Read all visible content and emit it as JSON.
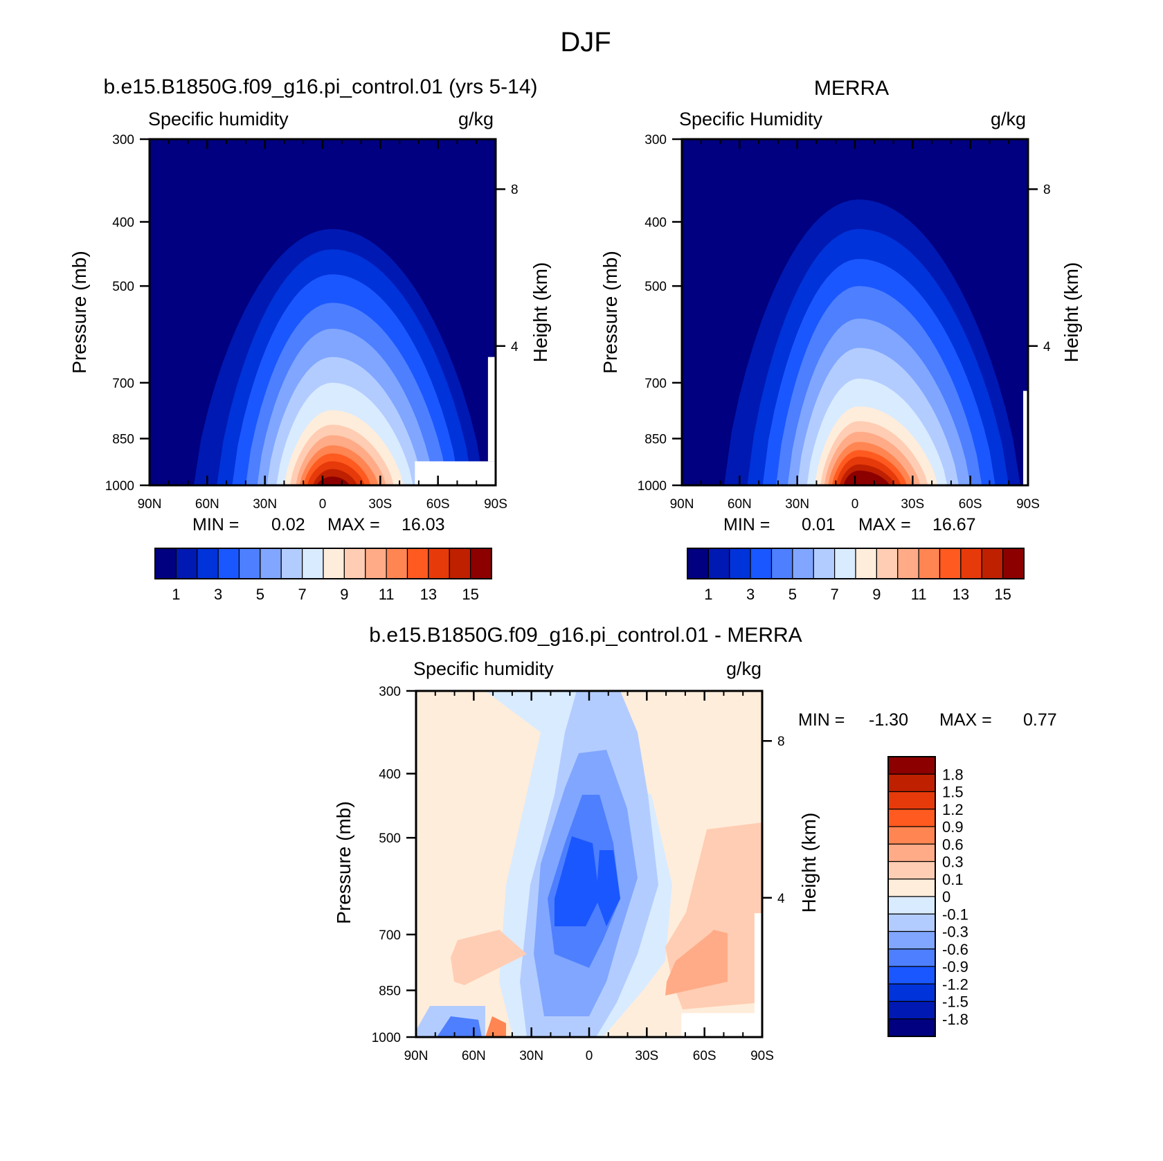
{
  "figure": {
    "title": "DJF"
  },
  "colors": {
    "seq": [
      "#000080",
      "#0019b3",
      "#0033d9",
      "#1a57ff",
      "#4d7fff",
      "#80a6ff",
      "#b3ccff",
      "#d9ebff",
      "#ffeddb",
      "#ffcdb3",
      "#ffab87",
      "#ff8552",
      "#ff5a1f",
      "#e63a0a",
      "#bf2000",
      "#8c0000"
    ],
    "diff": [
      "#000080",
      "#0019b3",
      "#0033d9",
      "#1a57ff",
      "#4d7fff",
      "#80a6ff",
      "#b3ccff",
      "#d9ebff",
      "#ffeddb",
      "#ffcdb3",
      "#ffab87",
      "#ff8552",
      "#ff5a1f",
      "#e63a0a",
      "#bf2000",
      "#8c0000"
    ]
  },
  "chart_data": [
    {
      "type": "heatmap",
      "title": "b.e15.B1850G.f09_g16.pi_control.01 (yrs 5-14)",
      "subtitle": "Specific humidity",
      "units": "g/kg",
      "xlabel": "",
      "ylabel": "Pressure (mb)",
      "ylabel_right": "Height (km)",
      "x_ticks": [
        "90N",
        "60N",
        "30N",
        "0",
        "30S",
        "60S",
        "90S"
      ],
      "y_ticks": [
        "300",
        "400",
        "500",
        "700",
        "850",
        "1000"
      ],
      "right_ticks": [
        "8",
        "4"
      ],
      "ylim": [
        1000,
        300
      ],
      "min_label": "MIN =",
      "min_value": "0.02",
      "max_label": "MAX =",
      "max_value": "16.03",
      "colorbar_labels": [
        "1",
        "3",
        "5",
        "7",
        "9",
        "11",
        "13",
        "15"
      ],
      "peak": 16.03,
      "peak_lat": -5,
      "levels": [
        {
          "value": 1,
          "top": 410,
          "lat_n": 67,
          "lat_s": -84,
          "crest": 410
        },
        {
          "value": 2,
          "top": 440,
          "lat_n": 55,
          "lat_s": -78
        },
        {
          "value": 3,
          "top": 480,
          "lat_n": 47,
          "lat_s": -71
        },
        {
          "value": 4,
          "top": 530,
          "lat_n": 40,
          "lat_s": -65
        },
        {
          "value": 5,
          "top": 580,
          "lat_n": 34,
          "lat_s": -58
        },
        {
          "value": 6,
          "top": 640,
          "lat_n": 29,
          "lat_s": -52
        },
        {
          "value": 7,
          "top": 700,
          "lat_n": 24,
          "lat_s": -47
        },
        {
          "value": 8,
          "top": 770,
          "lat_n": 20,
          "lat_s": -42
        },
        {
          "value": 9,
          "top": 810,
          "lat_n": 17,
          "lat_s": -37
        },
        {
          "value": 10,
          "top": 840,
          "lat_n": 14,
          "lat_s": -33
        },
        {
          "value": 11,
          "top": 870,
          "lat_n": 12,
          "lat_s": -29
        },
        {
          "value": 12,
          "top": 895,
          "lat_n": 10,
          "lat_s": -25
        },
        {
          "value": 13,
          "top": 920,
          "lat_n": 8,
          "lat_s": -22
        },
        {
          "value": 14,
          "top": 945,
          "lat_n": 5,
          "lat_s": -18
        },
        {
          "value": 15,
          "top": 970,
          "lat_n": 3,
          "lat_s": -14
        }
      ]
    },
    {
      "type": "heatmap",
      "title": "MERRA",
      "subtitle": "Specific Humidity",
      "units": "g/kg",
      "xlabel": "",
      "ylabel": "Pressure (mb)",
      "ylabel_right": "Height (km)",
      "x_ticks": [
        "90N",
        "60N",
        "30N",
        "0",
        "30S",
        "60S",
        "90S"
      ],
      "y_ticks": [
        "300",
        "400",
        "500",
        "700",
        "850",
        "1000"
      ],
      "right_ticks": [
        "8",
        "4"
      ],
      "ylim": [
        1000,
        300
      ],
      "min_label": "MIN =",
      "min_value": "0.01",
      "max_label": "MAX =",
      "max_value": "16.67",
      "colorbar_labels": [
        "1",
        "3",
        "5",
        "7",
        "9",
        "11",
        "13",
        "15"
      ],
      "peak": 16.67,
      "peak_lat": -2,
      "levels": [
        {
          "value": 1,
          "top": 370,
          "lat_n": 68,
          "lat_s": -86
        },
        {
          "value": 2,
          "top": 410,
          "lat_n": 56,
          "lat_s": -80
        },
        {
          "value": 3,
          "top": 455,
          "lat_n": 48,
          "lat_s": -73
        },
        {
          "value": 4,
          "top": 500,
          "lat_n": 41,
          "lat_s": -66
        },
        {
          "value": 5,
          "top": 560,
          "lat_n": 35,
          "lat_s": -60
        },
        {
          "value": 6,
          "top": 620,
          "lat_n": 30,
          "lat_s": -54
        },
        {
          "value": 7,
          "top": 690,
          "lat_n": 25,
          "lat_s": -48
        },
        {
          "value": 8,
          "top": 760,
          "lat_n": 21,
          "lat_s": -43
        },
        {
          "value": 9,
          "top": 800,
          "lat_n": 18,
          "lat_s": -38
        },
        {
          "value": 10,
          "top": 830,
          "lat_n": 16,
          "lat_s": -34
        },
        {
          "value": 11,
          "top": 860,
          "lat_n": 14,
          "lat_s": -30
        },
        {
          "value": 12,
          "top": 885,
          "lat_n": 12,
          "lat_s": -27
        },
        {
          "value": 13,
          "top": 905,
          "lat_n": 10,
          "lat_s": -24
        },
        {
          "value": 14,
          "top": 930,
          "lat_n": 8,
          "lat_s": -21
        },
        {
          "value": 15,
          "top": 950,
          "lat_n": 6,
          "lat_s": -18
        }
      ]
    },
    {
      "type": "heatmap",
      "title": "b.e15.B1850G.f09_g16.pi_control.01 - MERRA",
      "subtitle": "Specific humidity",
      "units": "g/kg",
      "xlabel": "",
      "ylabel": "Pressure (mb)",
      "ylabel_right": "Height (km)",
      "x_ticks": [
        "90N",
        "60N",
        "30N",
        "0",
        "30S",
        "60S",
        "90S"
      ],
      "y_ticks": [
        "300",
        "400",
        "500",
        "700",
        "850",
        "1000"
      ],
      "right_ticks": [
        "8",
        "4"
      ],
      "ylim": [
        1000,
        300
      ],
      "min_label": "MIN =",
      "min_value": "-1.30",
      "max_label": "MAX =",
      "max_value": "0.77",
      "colorbar_labels": [
        "1.8",
        "1.5",
        "1.2",
        "0.9",
        "0.6",
        "0.3",
        "0.1",
        "0",
        "-0.1",
        "-0.3",
        "-0.6",
        "-0.9",
        "-1.2",
        "-1.5",
        "-1.8"
      ]
    }
  ]
}
